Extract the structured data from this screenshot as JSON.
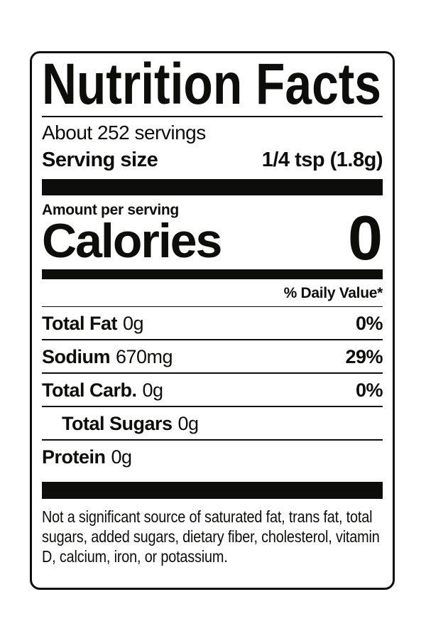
{
  "label": {
    "title": "Nutrition Facts",
    "servings_per_container": "About 252 servings",
    "serving_size_label": "Serving size",
    "serving_size_value": "1/4 tsp (1.8g)",
    "amount_per_serving": "Amount per serving",
    "calories_label": "Calories",
    "calories_value": "0",
    "daily_value_header": "% Daily Value*",
    "rows": [
      {
        "name": "Total Fat",
        "amount": "0g",
        "dv": "0%",
        "indent": false
      },
      {
        "name": "Sodium",
        "amount": "670mg",
        "dv": "29%",
        "indent": false
      },
      {
        "name": "Total Carb.",
        "amount": "0g",
        "dv": "0%",
        "indent": false
      },
      {
        "name": "Total Sugars",
        "amount": "0g",
        "dv": "",
        "indent": true
      },
      {
        "name": "Protein",
        "amount": "0g",
        "dv": "",
        "indent": false
      }
    ],
    "footnote": "Not a significant source of saturated fat, trans fat, total sugars, added sugars, dietary fiber, cholesterol, vitamin D, calcium, iron, or potassium.",
    "colors": {
      "text": "#0d0d0b",
      "background": "#ffffff"
    }
  }
}
